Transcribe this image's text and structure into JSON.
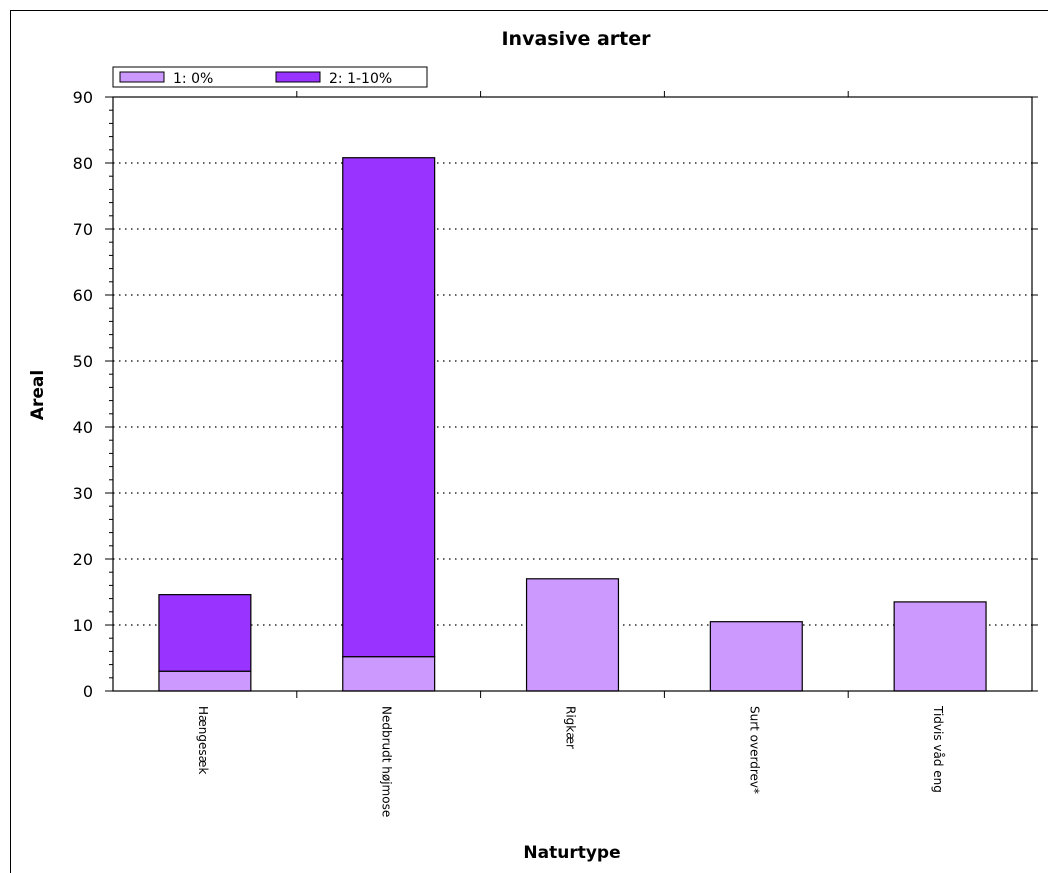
{
  "chart_data": {
    "type": "bar",
    "stacked": true,
    "title": "Invasive arter",
    "xlabel": "Naturtype",
    "ylabel": "Areal",
    "ylim": [
      0,
      90
    ],
    "yticks": [
      0,
      10,
      20,
      30,
      40,
      50,
      60,
      70,
      80,
      90
    ],
    "grid": true,
    "legend_position": "top-left",
    "categories": [
      "Hængesæk",
      "Nedbrudt højmose",
      "Rigkær",
      "Surt overdrev*",
      "Tidvis våd eng"
    ],
    "series": [
      {
        "name": "1: 0%",
        "color": "#cc99ff",
        "values": [
          3.0,
          5.2,
          17.0,
          10.5,
          13.5
        ]
      },
      {
        "name": "2: 1-10%",
        "color": "#9933ff",
        "values": [
          11.6,
          75.6,
          0,
          0,
          0
        ]
      }
    ]
  }
}
